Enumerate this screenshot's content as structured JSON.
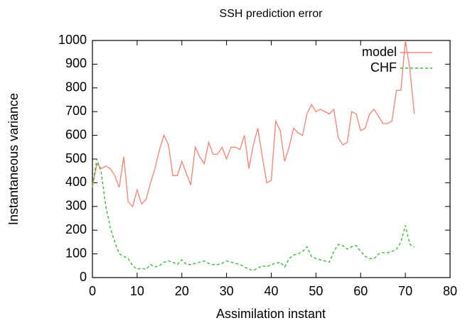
{
  "chart_data": {
    "type": "line",
    "title": "SSH prediction error",
    "x_label": "Assimilation instant",
    "y_label": "Instantaneous variance",
    "x": [
      0,
      1,
      2,
      3,
      4,
      5,
      6,
      7,
      8,
      9,
      10,
      11,
      12,
      13,
      14,
      15,
      16,
      17,
      18,
      19,
      20,
      21,
      22,
      23,
      24,
      25,
      26,
      27,
      28,
      29,
      30,
      31,
      32,
      33,
      34,
      35,
      36,
      37,
      38,
      39,
      40,
      41,
      42,
      43,
      44,
      45,
      46,
      47,
      48,
      49,
      50,
      51,
      52,
      53,
      54,
      55,
      56,
      57,
      58,
      59,
      60,
      61,
      62,
      63,
      64,
      65,
      66,
      67,
      68,
      69,
      70,
      71,
      72
    ],
    "series": [
      {
        "name": "model",
        "color": "#f4877a",
        "dash": "solid",
        "values": [
          380,
          480,
          460,
          470,
          460,
          430,
          380,
          510,
          320,
          300,
          370,
          310,
          330,
          400,
          460,
          540,
          600,
          560,
          430,
          430,
          490,
          440,
          390,
          550,
          510,
          480,
          570,
          520,
          520,
          550,
          500,
          550,
          550,
          540,
          600,
          460,
          560,
          630,
          510,
          400,
          410,
          660,
          620,
          490,
          550,
          630,
          610,
          600,
          690,
          730,
          700,
          710,
          700,
          690,
          710,
          590,
          560,
          570,
          700,
          690,
          620,
          630,
          690,
          710,
          680,
          650,
          650,
          660,
          790,
          790,
          1000,
          880,
          690
        ]
      },
      {
        "name": "CHF",
        "color": "#3cb83c",
        "dash": "dashed",
        "values": [
          390,
          500,
          440,
          300,
          210,
          150,
          100,
          90,
          80,
          50,
          35,
          40,
          35,
          55,
          45,
          50,
          65,
          70,
          65,
          55,
          75,
          55,
          55,
          60,
          65,
          70,
          60,
          55,
          55,
          60,
          70,
          65,
          60,
          55,
          45,
          35,
          30,
          40,
          50,
          45,
          55,
          60,
          65,
          45,
          80,
          95,
          100,
          110,
          130,
          90,
          80,
          75,
          70,
          65,
          110,
          140,
          135,
          120,
          130,
          135,
          110,
          90,
          80,
          80,
          100,
          105,
          105,
          110,
          120,
          150,
          220,
          140,
          130
        ]
      }
    ],
    "xlim": [
      0,
      80
    ],
    "xticks": [
      0,
      10,
      20,
      30,
      40,
      50,
      60,
      70,
      80
    ],
    "ylim": [
      0,
      1000
    ],
    "yticks": [
      0,
      100,
      200,
      300,
      400,
      500,
      600,
      700,
      800,
      900,
      1000
    ],
    "legend": "top-right"
  }
}
